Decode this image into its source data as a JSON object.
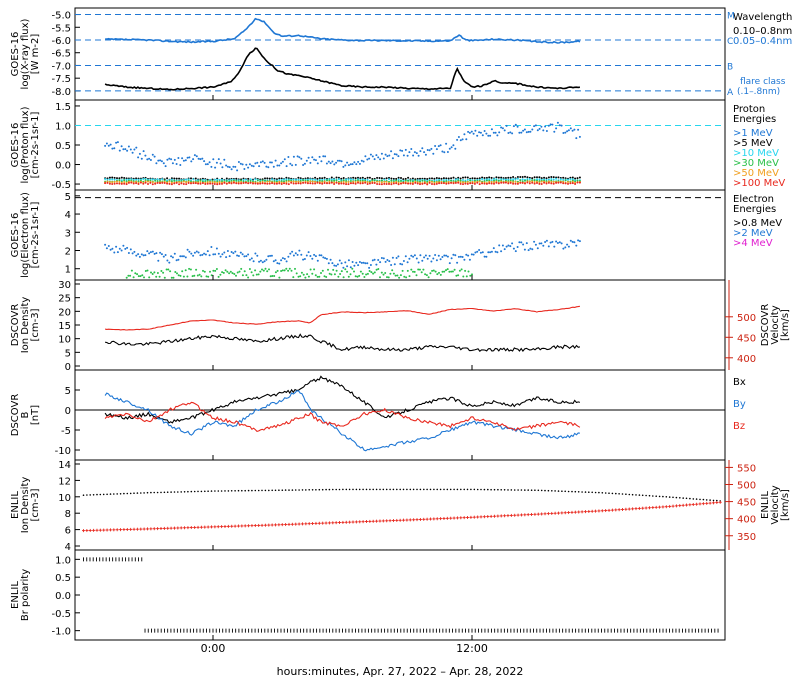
{
  "x_caption": "hours:minutes, Apr. 27, 2022 – Apr. 28, 2022",
  "x_ticks": [
    "0:00",
    "12:00"
  ],
  "colors": {
    "black": "#000000",
    "blue": "#1f77d4",
    "cyan": "#27d6ee",
    "green": "#29c04a",
    "orange": "#f0a020",
    "red": "#e8281e",
    "magenta": "#e020d0",
    "dkred": "#cc2211"
  },
  "chart_data": [
    {
      "type": "line",
      "ylabel": [
        "GOES-16",
        "log(X-ray flux)",
        "[W m-2]"
      ],
      "ytick_labels": [
        "-5.0",
        "-5.5",
        "-6.0",
        "-6.5",
        "-7.0",
        "-7.5",
        "-8.0"
      ],
      "ylim": [
        -8.2,
        -4.9
      ],
      "legend_title": "Wavelength",
      "legend": [
        {
          "name": "0.10–0.8nm",
          "color": "black"
        },
        {
          "name": "0.05–0.4nm",
          "color": "blue"
        }
      ],
      "flare_class_label": [
        "flare class",
        "(.1–.8nm)"
      ],
      "flare_levels": [
        {
          "label": "M",
          "value": -5.0
        },
        {
          "label": "C",
          "value": -6.0
        },
        {
          "label": "B",
          "value": -7.0
        },
        {
          "label": "A",
          "value": -8.0
        }
      ],
      "series": [
        {
          "color": "blue",
          "x": [
            -5,
            -3,
            -2,
            -1,
            0,
            1,
            1.5,
            2,
            2.4,
            2.8,
            3.2,
            4,
            5,
            6,
            7,
            8,
            9,
            10,
            11,
            11.4,
            11.7,
            12,
            12.5,
            13,
            14,
            15,
            16,
            17
          ],
          "y": [
            -5.97,
            -6.0,
            -6.05,
            -6.08,
            -6.05,
            -5.95,
            -5.6,
            -5.15,
            -5.3,
            -5.7,
            -5.85,
            -5.82,
            -5.95,
            -6.0,
            -6.02,
            -6.02,
            -6.03,
            -6.04,
            -6.03,
            -5.8,
            -6.0,
            -6.02,
            -6.0,
            -5.97,
            -6.0,
            -6.07,
            -6.1,
            -6.05
          ]
        },
        {
          "color": "black",
          "x": [
            -5,
            -4,
            -3,
            -2,
            -1,
            0,
            0.8,
            1.2,
            1.6,
            2.0,
            2.4,
            3.0,
            3.5,
            4.0,
            5.0,
            6.0,
            7.0,
            8.0,
            9.0,
            10.0,
            11.0,
            11.3,
            11.6,
            12.0,
            12.5,
            13,
            13.5,
            14,
            15,
            16,
            17
          ],
          "y": [
            -7.75,
            -7.85,
            -7.9,
            -7.95,
            -7.9,
            -7.85,
            -7.65,
            -7.3,
            -6.6,
            -6.3,
            -6.75,
            -7.2,
            -7.35,
            -7.4,
            -7.6,
            -7.8,
            -7.85,
            -7.85,
            -7.9,
            -7.92,
            -7.9,
            -7.1,
            -7.6,
            -7.85,
            -7.8,
            -7.6,
            -7.7,
            -7.7,
            -7.85,
            -7.9,
            -7.85
          ]
        }
      ]
    },
    {
      "type": "scatter",
      "ylabel": [
        "GOES-16",
        "log(Proton flux)",
        "[cm-2s-1sr-1]"
      ],
      "ytick_labels": [
        "1.5",
        "1.0",
        "0.5",
        "0.0",
        "-0.5"
      ],
      "ylim": [
        -0.55,
        1.55
      ],
      "legend_title": [
        "Proton",
        "Energies"
      ],
      "legend": [
        {
          "name": ">1 MeV",
          "color": "blue"
        },
        {
          "name": ">5 MeV",
          "color": "black"
        },
        {
          "name": ">10 MeV",
          "color": "cyan"
        },
        {
          "name": ">30 MeV",
          "color": "green"
        },
        {
          "name": ">50 MeV",
          "color": "orange"
        },
        {
          "name": ">100 MeV",
          "color": "red"
        }
      ],
      "threshold": 1.0,
      "series": [
        {
          "name": ">1 MeV",
          "color": "blue",
          "x": [
            -5,
            -4,
            -3,
            -2,
            -1,
            0,
            1,
            2,
            3,
            4,
            5,
            6,
            7,
            8,
            9,
            10,
            11,
            12,
            13,
            14,
            15,
            16,
            17
          ],
          "y": [
            0.55,
            0.4,
            0.2,
            0.05,
            0.15,
            0.05,
            -0.05,
            0.0,
            0.05,
            0.1,
            0.15,
            0.05,
            0.1,
            0.2,
            0.3,
            0.35,
            0.45,
            0.8,
            0.85,
            0.9,
            0.95,
            0.95,
            0.75
          ]
        },
        {
          "name": ">5 MeV",
          "color": "black",
          "x": [
            -5,
            0,
            5,
            10,
            15,
            17
          ],
          "y": [
            -0.35,
            -0.38,
            -0.35,
            -0.36,
            -0.33,
            -0.35
          ]
        },
        {
          "name": ">10 MeV",
          "color": "cyan",
          "x": [
            -5,
            0,
            5,
            10,
            15,
            17
          ],
          "y": [
            -0.38,
            -0.4,
            -0.39,
            -0.4,
            -0.38,
            -0.39
          ]
        },
        {
          "name": ">30 MeV",
          "color": "green",
          "x": [
            -5,
            0,
            5,
            10,
            15,
            17
          ],
          "y": [
            -0.42,
            -0.43,
            -0.42,
            -0.43,
            -0.42,
            -0.42
          ]
        },
        {
          "name": ">50 MeV",
          "color": "orange",
          "x": [
            -5,
            0,
            5,
            10,
            15,
            17
          ],
          "y": [
            -0.45,
            -0.46,
            -0.45,
            -0.46,
            -0.45,
            -0.45
          ]
        },
        {
          "name": ">100 MeV",
          "color": "red",
          "x": [
            -5,
            0,
            5,
            10,
            15,
            17
          ],
          "y": [
            -0.48,
            -0.49,
            -0.48,
            -0.49,
            -0.48,
            -0.48
          ]
        }
      ]
    },
    {
      "type": "scatter",
      "ylabel": [
        "GOES-16",
        "log(Electron flux)",
        "[cm-2s-1sr-1]"
      ],
      "ytick_labels": [
        "5",
        "4",
        "3",
        "2",
        "1"
      ],
      "ylim": [
        0.6,
        5.1
      ],
      "legend_title": [
        "Electron",
        "Energies"
      ],
      "legend": [
        {
          "name": ">0.8 MeV",
          "color": "black"
        },
        {
          "name": ">2 MeV",
          "color": "blue"
        },
        {
          "name": ">4 MeV",
          "color": "magenta"
        }
      ],
      "threshold": 4.9,
      "series": [
        {
          "name": ">2 MeV",
          "color": "blue",
          "x": [
            -5,
            -4,
            -3,
            -2,
            -1,
            0,
            1,
            2,
            3,
            4,
            5,
            6,
            7,
            8,
            9,
            10,
            11,
            12,
            13,
            14,
            15,
            16,
            17
          ],
          "y": [
            2.2,
            2.0,
            1.8,
            1.5,
            1.9,
            2.0,
            1.7,
            1.6,
            1.5,
            1.8,
            1.5,
            1.3,
            1.2,
            1.4,
            1.5,
            1.6,
            1.5,
            1.7,
            2.0,
            2.2,
            2.3,
            2.3,
            2.5
          ]
        },
        {
          "name": ">0.8 MeV floor",
          "color": "green",
          "x": [
            -4,
            0,
            4,
            8,
            12
          ],
          "y": [
            0.75,
            0.75,
            0.75,
            0.75,
            0.75
          ]
        }
      ]
    },
    {
      "type": "line",
      "ylabel": [
        "DSCOVR",
        "Ion Density",
        "[cm-3]"
      ],
      "ytick_labels": [
        "30",
        "25",
        "20",
        "15",
        "10",
        "5",
        "0"
      ],
      "ylim": [
        0,
        30
      ],
      "ylabel_right": [
        "DSCOVR",
        "Velocity",
        "[km/s]"
      ],
      "ytick_labels_right": [
        "500",
        "450",
        "400"
      ],
      "ylim_right": [
        380,
        580
      ],
      "series": [
        {
          "name": "density",
          "color": "black",
          "x": [
            -5,
            -4,
            -3,
            -2,
            -1,
            0,
            1,
            2,
            3,
            4,
            4.5,
            5,
            6,
            7,
            8,
            9,
            10,
            11,
            12,
            13,
            14,
            15,
            16,
            17
          ],
          "y": [
            9,
            8,
            8,
            9,
            10,
            11,
            10,
            9,
            10,
            11,
            11,
            9,
            6,
            7,
            6,
            6,
            7,
            7,
            6,
            6,
            6,
            6,
            7,
            7
          ]
        },
        {
          "name": "velocity",
          "color": "red",
          "x": [
            -5,
            -4,
            -3,
            -2,
            -1,
            0,
            1,
            2,
            3,
            4,
            4.5,
            5,
            6,
            7,
            8,
            9,
            10,
            11,
            12,
            13,
            14,
            15,
            16,
            17
          ],
          "y": [
            470,
            468,
            470,
            480,
            490,
            492,
            485,
            482,
            488,
            490,
            485,
            505,
            512,
            510,
            512,
            515,
            506,
            518,
            520,
            514,
            520,
            512,
            518,
            525
          ]
        }
      ]
    },
    {
      "type": "line",
      "ylabel": [
        "DSCOVR",
        "B",
        "[nT]"
      ],
      "ytick_labels": [
        "5",
        "0",
        "-5",
        "-10"
      ],
      "ylim": [
        -11.5,
        9
      ],
      "legend": [
        {
          "name": "Bx",
          "color": "black"
        },
        {
          "name": "By",
          "color": "blue"
        },
        {
          "name": "Bz",
          "color": "red"
        }
      ],
      "series": [
        {
          "name": "Bx",
          "color": "black",
          "x": [
            -5,
            -4,
            -3,
            -2,
            -1,
            0,
            1,
            2,
            3,
            4,
            4.5,
            5,
            6,
            7,
            8,
            9,
            10,
            11,
            12,
            13,
            14,
            15,
            16,
            17
          ],
          "y": [
            -1,
            -2,
            -1,
            -3,
            -2,
            0,
            2,
            3,
            4,
            5,
            7,
            8,
            6,
            2,
            -2,
            0,
            2,
            3,
            1,
            2,
            1,
            3,
            2,
            2
          ]
        },
        {
          "name": "By",
          "color": "blue",
          "x": [
            -5,
            -4,
            -3,
            -2,
            -1,
            0,
            1,
            2,
            3,
            4,
            4.5,
            5,
            6,
            7,
            8,
            9,
            10,
            11,
            12,
            13,
            14,
            15,
            16,
            17
          ],
          "y": [
            4,
            2,
            0,
            -4,
            -6,
            -3,
            -4,
            0,
            2,
            5,
            0,
            -2,
            -6,
            -10,
            -9,
            -8,
            -7,
            -5,
            -3,
            -4,
            -5,
            -6,
            -7,
            -6
          ]
        },
        {
          "name": "Bz",
          "color": "red",
          "x": [
            -5,
            -4,
            -3,
            -2,
            -1,
            0,
            1,
            2,
            3,
            4,
            4.5,
            5,
            6,
            7,
            8,
            9,
            10,
            11,
            12,
            13,
            14,
            15,
            16,
            17
          ],
          "y": [
            -2,
            -1,
            -3,
            0,
            2,
            -2,
            -3,
            -5,
            -4,
            -2,
            -1,
            -3,
            -4,
            -1,
            0,
            -2,
            -3,
            -4,
            -2,
            -3,
            -5,
            -4,
            -3,
            -4
          ]
        }
      ]
    },
    {
      "type": "scatter",
      "ylabel": [
        "ENLIL",
        "Ion Density",
        "[cm-3]"
      ],
      "ytick_labels": [
        "14",
        "12",
        "10",
        "8",
        "6",
        "4"
      ],
      "ylim": [
        4,
        14
      ],
      "ylabel_right": [
        "ENLIL",
        "Velocity",
        "[km/s]"
      ],
      "ytick_labels_right": [
        "550",
        "500",
        "450",
        "400",
        "350"
      ],
      "ylim_right": [
        320,
        560
      ],
      "series": [
        {
          "name": "density",
          "color": "black",
          "x": [
            -6,
            -3,
            0,
            3,
            6,
            9,
            12,
            15,
            18,
            21,
            23.5
          ],
          "y": [
            10.2,
            10.5,
            10.7,
            10.8,
            10.9,
            10.9,
            10.9,
            10.8,
            10.5,
            10.0,
            9.5
          ]
        },
        {
          "name": "velocity",
          "color": "red",
          "x": [
            -6,
            -3,
            0,
            3,
            6,
            9,
            12,
            15,
            18,
            21,
            23.5
          ],
          "y": [
            365,
            370,
            376,
            382,
            389,
            396,
            404,
            413,
            423,
            435,
            448
          ]
        }
      ]
    },
    {
      "type": "scatter",
      "ylabel": [
        "ENLIL",
        "Br polarity"
      ],
      "ytick_labels": [
        "1.0",
        "0.5",
        "0.0",
        "-0.5",
        "-1.0"
      ],
      "ylim": [
        -1.15,
        1.15
      ],
      "series": [
        {
          "name": "polarity",
          "color": "black",
          "x": [
            -6,
            -5,
            -4,
            -3.3,
            -3.2,
            0,
            5,
            10,
            15,
            20,
            23.5
          ],
          "y": [
            1,
            1,
            1,
            1,
            -1,
            -1,
            -1,
            -1,
            -1,
            -1,
            -1
          ]
        }
      ]
    }
  ]
}
